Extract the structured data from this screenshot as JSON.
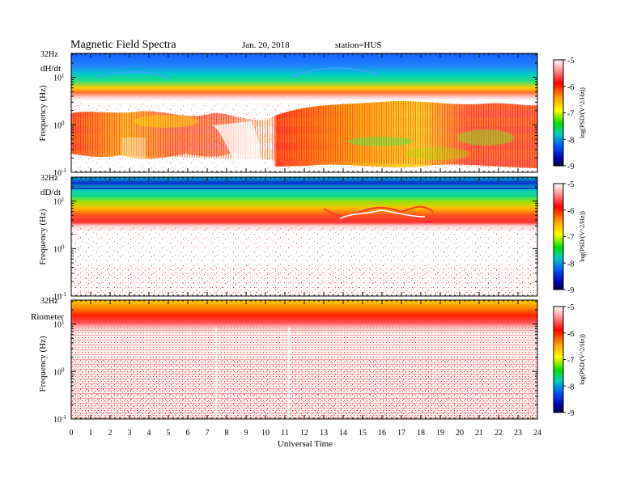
{
  "header": {
    "title": "Magnetic  Field  Spectra",
    "date": "Jan. 20, 2018",
    "station": "station=HUS"
  },
  "chart_data": {
    "type": "heatmap",
    "xlabel": "Universal Time",
    "x_ticks": [
      "0",
      "1",
      "2",
      "3",
      "4",
      "5",
      "6",
      "7",
      "8",
      "9",
      "10",
      "11",
      "12",
      "13",
      "14",
      "15",
      "16",
      "17",
      "18",
      "19",
      "20",
      "21",
      "22",
      "23",
      "24"
    ],
    "xlim": [
      0,
      24
    ],
    "colorbar": {
      "label": "log(PSD/(V^2/Hz))",
      "ticks": [
        "-5",
        "-6",
        "-7",
        "-8",
        "-9"
      ],
      "range": [
        -9,
        -5
      ]
    },
    "panels": [
      {
        "name": "dH/dt",
        "ylabel": "Frequency  (Hz)",
        "top_label": "32Hz",
        "y_ticks": [
          {
            "base": "10",
            "exp": "1"
          },
          {
            "base": "10",
            "exp": "0"
          },
          {
            "base": "10",
            "exp": "-1"
          }
        ],
        "y_scale": "log",
        "ylim": [
          0.1,
          32
        ]
      },
      {
        "name": "dD/dt",
        "ylabel": "Frequency  (Hz)",
        "top_label": "32Hz",
        "y_ticks": [
          {
            "base": "10",
            "exp": "1"
          },
          {
            "base": "10",
            "exp": "0"
          },
          {
            "base": "10",
            "exp": "-1"
          }
        ],
        "y_scale": "log",
        "ylim": [
          0.1,
          32
        ]
      },
      {
        "name": "Riometer",
        "ylabel": "Frequency  (Hz)",
        "top_label": "32Hz",
        "y_ticks": [
          {
            "base": "10",
            "exp": "1"
          },
          {
            "base": "10",
            "exp": "0"
          },
          {
            "base": "10",
            "exp": "-1"
          }
        ],
        "y_scale": "log",
        "ylim": [
          0.1,
          32
        ]
      }
    ]
  }
}
